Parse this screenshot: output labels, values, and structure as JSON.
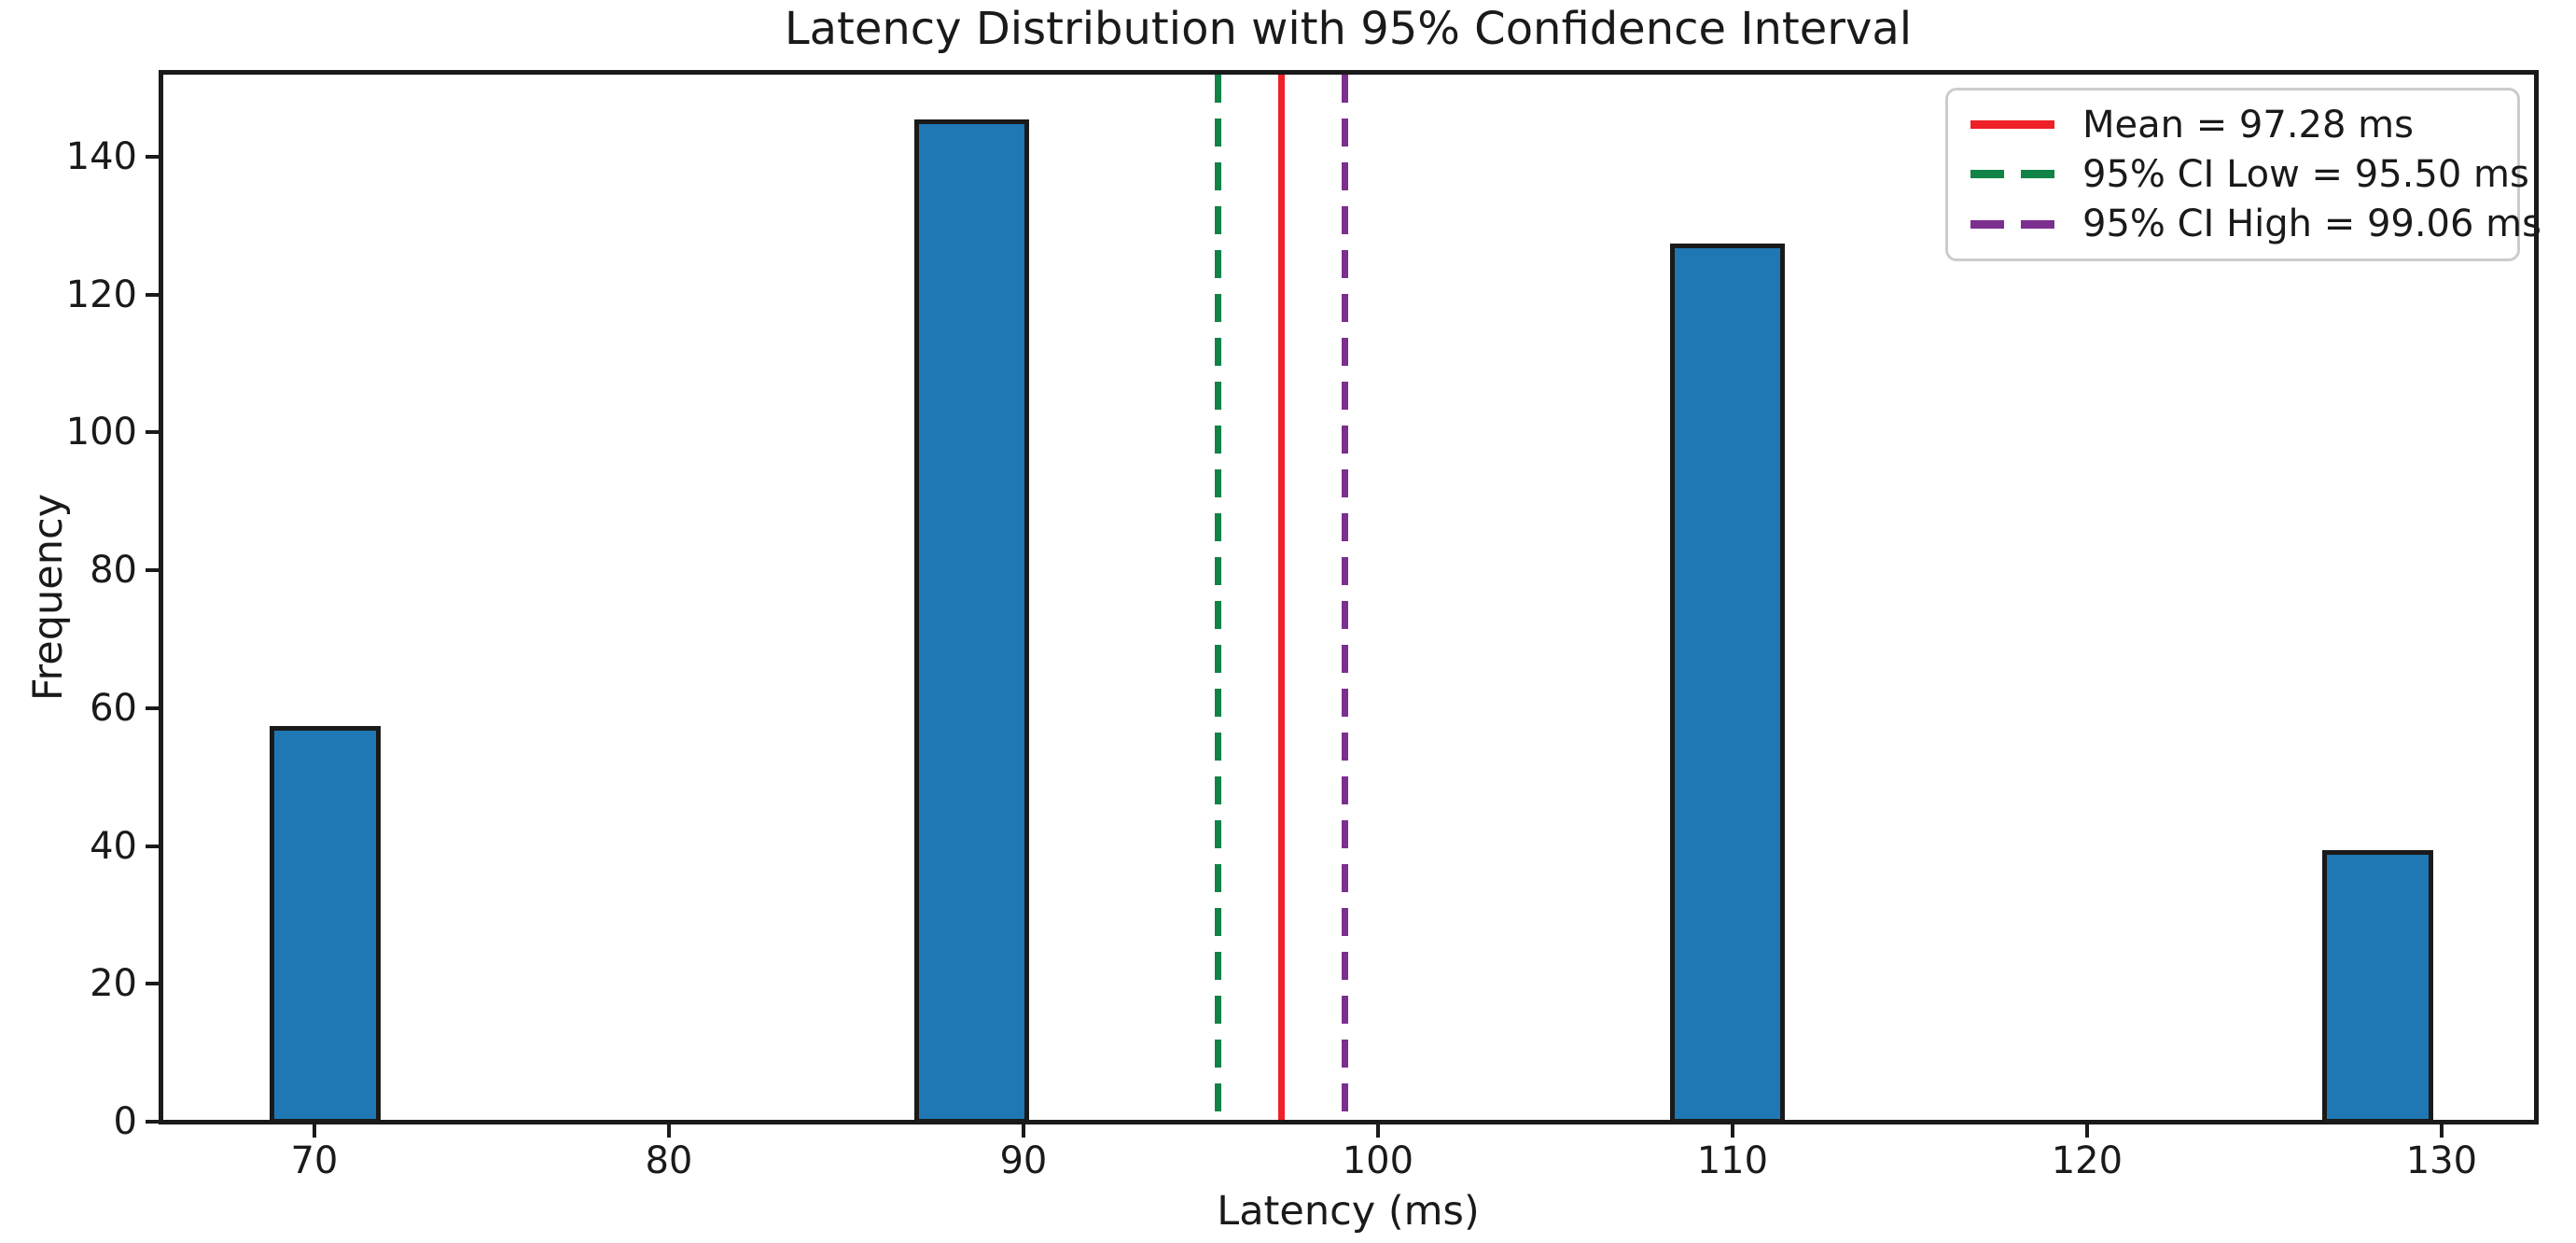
{
  "colors": {
    "bar_fill": "#1f77b4",
    "bar_edge": "#1a1a1a",
    "axis": "#1a1a1a",
    "mean_line": "#ee2127",
    "ci_low_line": "#128347",
    "ci_high_line": "#7c2f8f",
    "legend_border": "#cccccc"
  },
  "chart_data": {
    "type": "bar",
    "title": "Latency Distribution with 95% Confidence Interval",
    "xlabel": "Latency (ms)",
    "ylabel": "Frequency",
    "xlim": [
      65.66,
      132.66
    ],
    "ylim": [
      0,
      152.3
    ],
    "x_ticks": [
      70,
      80,
      90,
      100,
      110,
      120,
      130
    ],
    "y_ticks": [
      0,
      20,
      40,
      60,
      80,
      100,
      120,
      140
    ],
    "grid": false,
    "legend_position": "upper right",
    "bars": [
      {
        "x_start": 68.8,
        "x_end": 71.8,
        "height": 57
      },
      {
        "x_start": 87.0,
        "x_end": 90.1,
        "height": 145
      },
      {
        "x_start": 108.3,
        "x_end": 111.4,
        "height": 127
      },
      {
        "x_start": 126.7,
        "x_end": 129.7,
        "height": 39
      }
    ],
    "vlines": [
      {
        "name": "mean-line",
        "x": 97.28,
        "style": "solid",
        "color_key": "mean_line",
        "label": "Mean = 97.28 ms"
      },
      {
        "name": "ci-low-line",
        "x": 95.5,
        "style": "dashed",
        "color_key": "ci_low_line",
        "label": "95% CI Low = 95.50 ms"
      },
      {
        "name": "ci-high-line",
        "x": 99.06,
        "style": "dashed",
        "color_key": "ci_high_line",
        "label": "95% CI High = 99.06 ms"
      }
    ]
  }
}
